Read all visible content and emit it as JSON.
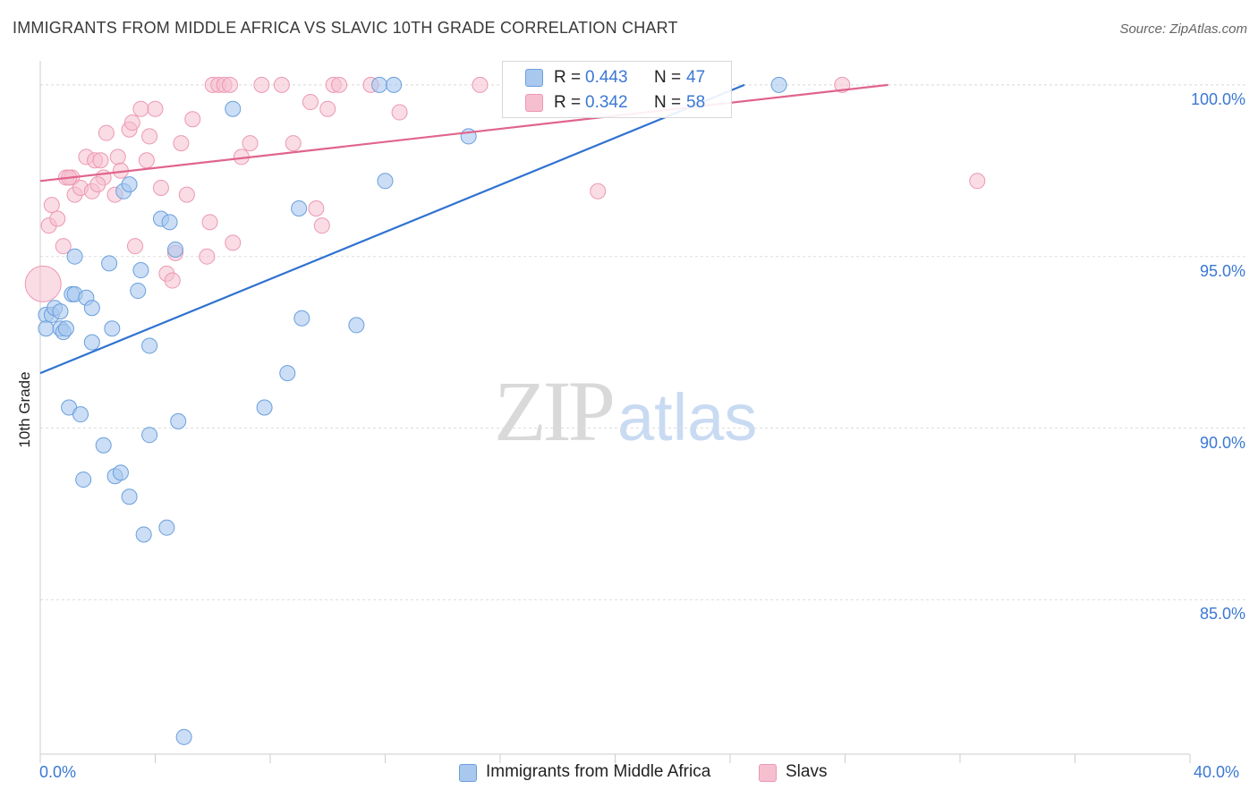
{
  "title": "IMMIGRANTS FROM MIDDLE AFRICA VS SLAVIC 10TH GRADE CORRELATION CHART",
  "source": "Source: ZipAtlas.com",
  "watermark": {
    "zip": "ZIP",
    "atlas": "atlas"
  },
  "legend": {
    "rows": [
      {
        "r_label": "R = ",
        "r_value": "0.443",
        "n_label": "N = ",
        "n_value": "47"
      },
      {
        "r_label": "R = ",
        "r_value": "0.342",
        "n_label": "N = ",
        "n_value": "58"
      }
    ]
  },
  "colors": {
    "blue_fill": "#a9c8ee",
    "blue_stroke": "#6a9fdd",
    "blue_line": "#2f72d0",
    "pink_fill": "#f6bfcf",
    "pink_stroke": "#ec98b2",
    "pink_line": "#e0648c",
    "tick_text": "#3a78d4",
    "grid": "#dddddd"
  },
  "chart_data": {
    "type": "scatter",
    "title": "IMMIGRANTS FROM MIDDLE AFRICA VS SLAVIC 10TH GRADE CORRELATION CHART",
    "xlabel": "",
    "ylabel": "10th Grade",
    "xlim": [
      0,
      40
    ],
    "ylim": [
      80.5,
      100.7
    ],
    "x_tick_labels": [
      "0.0%",
      "40.0%"
    ],
    "y_ticks": [
      85,
      90,
      95,
      100
    ],
    "y_tick_labels": [
      "85.0%",
      "90.0%",
      "95.0%",
      "100.0%"
    ],
    "grid": true,
    "legend_position": "top-center",
    "series": [
      {
        "name": "Immigrants from Middle Africa",
        "color": "#a9c8ee",
        "r": 0.443,
        "n": 47,
        "trend": {
          "x": [
            0,
            24.5
          ],
          "y": [
            91.6,
            100.0
          ]
        },
        "points": [
          [
            0.2,
            93.3
          ],
          [
            0.2,
            92.9
          ],
          [
            0.4,
            93.3
          ],
          [
            0.5,
            93.5
          ],
          [
            0.7,
            93.4
          ],
          [
            0.7,
            92.9
          ],
          [
            0.8,
            92.8
          ],
          [
            1.0,
            90.6
          ],
          [
            1.1,
            93.9
          ],
          [
            1.2,
            95.0
          ],
          [
            1.2,
            93.9
          ],
          [
            1.4,
            90.4
          ],
          [
            1.6,
            93.8
          ],
          [
            1.8,
            93.5
          ],
          [
            1.8,
            92.5
          ],
          [
            2.4,
            94.8
          ],
          [
            2.5,
            92.9
          ],
          [
            2.2,
            89.5
          ],
          [
            2.6,
            88.6
          ],
          [
            2.8,
            88.7
          ],
          [
            2.9,
            96.9
          ],
          [
            3.1,
            97.1
          ],
          [
            3.1,
            88.0
          ],
          [
            3.4,
            94.0
          ],
          [
            3.5,
            94.6
          ],
          [
            3.6,
            86.9
          ],
          [
            3.8,
            92.4
          ],
          [
            3.8,
            89.8
          ],
          [
            4.2,
            96.1
          ],
          [
            4.4,
            87.1
          ],
          [
            4.5,
            96.0
          ],
          [
            4.7,
            95.2
          ],
          [
            4.8,
            90.2
          ],
          [
            5.0,
            81.0
          ],
          [
            6.7,
            99.3
          ],
          [
            7.8,
            90.6
          ],
          [
            8.6,
            91.6
          ],
          [
            9.0,
            96.4
          ],
          [
            9.1,
            93.2
          ],
          [
            11.0,
            93.0
          ],
          [
            11.8,
            100.0
          ],
          [
            12.0,
            97.2
          ],
          [
            12.3,
            100.0
          ],
          [
            14.9,
            98.5
          ],
          [
            25.7,
            100.0
          ],
          [
            1.5,
            88.5
          ],
          [
            0.9,
            92.9
          ]
        ]
      },
      {
        "name": "Slavs",
        "color": "#f6bfcf",
        "r": 0.342,
        "n": 58,
        "trend": {
          "x": [
            0,
            29.5
          ],
          "y": [
            97.2,
            100.0
          ]
        },
        "points": [
          [
            0.1,
            94.2
          ],
          [
            0.3,
            95.9
          ],
          [
            0.4,
            96.5
          ],
          [
            0.6,
            96.1
          ],
          [
            0.8,
            95.3
          ],
          [
            0.9,
            97.3
          ],
          [
            1.1,
            97.3
          ],
          [
            1.2,
            96.8
          ],
          [
            1.4,
            97.0
          ],
          [
            1.6,
            97.9
          ],
          [
            1.8,
            96.9
          ],
          [
            1.9,
            97.8
          ],
          [
            2.1,
            97.8
          ],
          [
            2.2,
            97.3
          ],
          [
            2.3,
            98.6
          ],
          [
            2.6,
            96.8
          ],
          [
            2.7,
            97.9
          ],
          [
            2.8,
            97.5
          ],
          [
            3.1,
            98.7
          ],
          [
            3.2,
            98.9
          ],
          [
            3.3,
            95.3
          ],
          [
            3.5,
            99.3
          ],
          [
            3.7,
            97.8
          ],
          [
            3.8,
            98.5
          ],
          [
            4.0,
            99.3
          ],
          [
            4.2,
            97.0
          ],
          [
            4.4,
            94.5
          ],
          [
            4.6,
            94.3
          ],
          [
            4.7,
            95.1
          ],
          [
            5.1,
            96.8
          ],
          [
            5.3,
            99.0
          ],
          [
            5.8,
            95.0
          ],
          [
            5.9,
            96.0
          ],
          [
            6.0,
            100.0
          ],
          [
            6.2,
            100.0
          ],
          [
            6.4,
            100.0
          ],
          [
            6.6,
            100.0
          ],
          [
            6.7,
            95.4
          ],
          [
            7.0,
            97.9
          ],
          [
            7.3,
            98.3
          ],
          [
            7.7,
            100.0
          ],
          [
            8.4,
            100.0
          ],
          [
            8.8,
            98.3
          ],
          [
            9.4,
            99.5
          ],
          [
            9.6,
            96.4
          ],
          [
            9.8,
            95.9
          ],
          [
            10.0,
            99.3
          ],
          [
            10.2,
            100.0
          ],
          [
            10.4,
            100.0
          ],
          [
            11.5,
            100.0
          ],
          [
            12.5,
            99.2
          ],
          [
            15.3,
            100.0
          ],
          [
            19.4,
            96.9
          ],
          [
            27.9,
            100.0
          ],
          [
            32.6,
            97.2
          ],
          [
            1.0,
            97.3
          ],
          [
            2.0,
            97.1
          ],
          [
            4.9,
            98.3
          ]
        ]
      }
    ]
  },
  "bottom_legend": [
    "Immigrants from Middle Africa",
    "Slavs"
  ]
}
